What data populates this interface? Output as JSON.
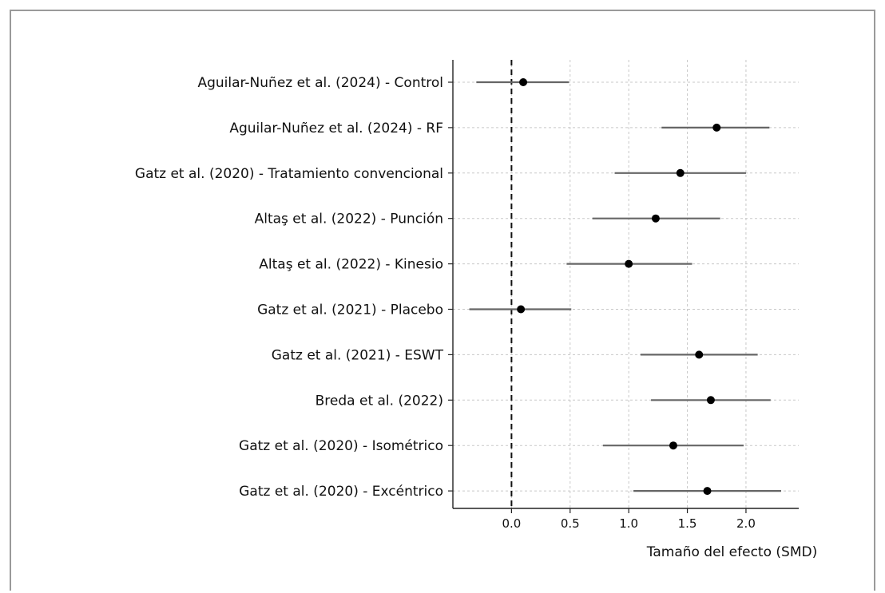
{
  "chart_data": {
    "type": "forest",
    "title": "",
    "xlabel": "Tamaño del efecto (SMD)",
    "ylabel": "",
    "xlim": [
      -0.5,
      2.45
    ],
    "xticks": [
      0.0,
      0.5,
      1.0,
      1.5,
      2.0
    ],
    "xtick_labels": [
      "0.0",
      "0.5",
      "1.0",
      "1.5",
      "2.0"
    ],
    "grid": true,
    "reference_line": 0.0,
    "studies": [
      {
        "label": "Aguilar-Nuñez et al. (2024) - Control",
        "effect": 0.1,
        "ci": [
          -0.3,
          0.49
        ]
      },
      {
        "label": "Aguilar-Nuñez et al. (2024) - RF",
        "effect": 1.75,
        "ci": [
          1.28,
          2.2
        ]
      },
      {
        "label": "Gatz et al. (2020) - Tratamiento convencional",
        "effect": 1.44,
        "ci": [
          0.88,
          2.0
        ]
      },
      {
        "label": "Altaş et al. (2022) - Punción",
        "effect": 1.23,
        "ci": [
          0.69,
          1.78
        ]
      },
      {
        "label": "Altaş et al. (2022) - Kinesio",
        "effect": 1.0,
        "ci": [
          0.47,
          1.54
        ]
      },
      {
        "label": "Gatz et al. (2021) - Placebo",
        "effect": 0.08,
        "ci": [
          -0.36,
          0.51
        ]
      },
      {
        "label": "Gatz et al. (2021) - ESWT",
        "effect": 1.6,
        "ci": [
          1.1,
          2.1
        ]
      },
      {
        "label": "Breda et al. (2022)",
        "effect": 1.7,
        "ci": [
          1.19,
          2.21
        ]
      },
      {
        "label": "Gatz et al. (2020) - Isométrico",
        "effect": 1.38,
        "ci": [
          0.78,
          1.98
        ]
      },
      {
        "label": "Gatz et al. (2020) - Excéntrico",
        "effect": 1.67,
        "ci": [
          1.04,
          2.3
        ]
      }
    ],
    "colors": {
      "point": "#000000",
      "ci": "#666666",
      "grid": "#c8c8c8",
      "axis": "#222222",
      "reference": "#111111"
    }
  }
}
